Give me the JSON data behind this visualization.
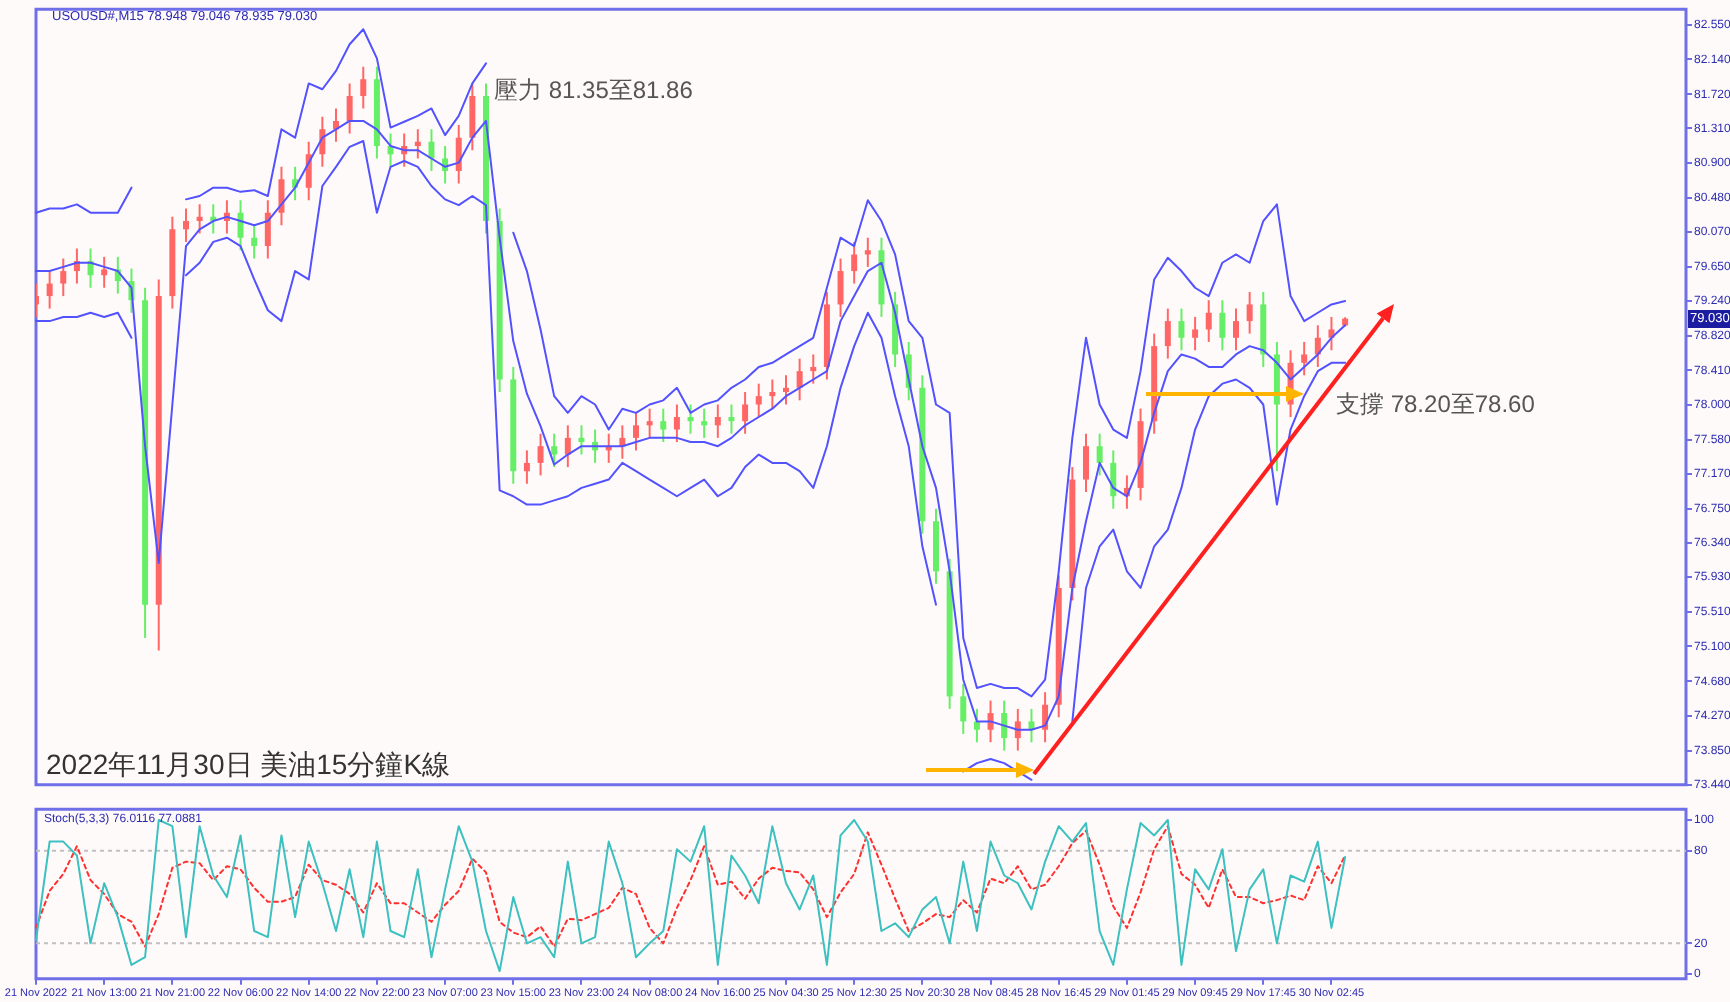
{
  "chart_data": [
    {
      "type": "candlestick",
      "marker": "none",
      "ylim": [
        73.44,
        82.74
      ],
      "yticks": [
        {
          "value": 82.55,
          "label": "82.550"
        },
        {
          "value": 82.14,
          "label": "82.140"
        },
        {
          "value": 81.72,
          "label": "81.720"
        },
        {
          "value": 81.31,
          "label": "81.310"
        },
        {
          "value": 80.9,
          "label": "80.900"
        },
        {
          "value": 80.48,
          "label": "80.480"
        },
        {
          "value": 80.07,
          "label": "80.070"
        },
        {
          "value": 79.65,
          "label": "79.650"
        },
        {
          "value": 79.24,
          "label": "79.240"
        },
        {
          "value": 78.82,
          "label": "78.820"
        },
        {
          "value": 78.41,
          "label": "78.410"
        },
        {
          "value": 78.0,
          "label": "78.000"
        },
        {
          "value": 77.58,
          "label": "77.580"
        },
        {
          "value": 77.17,
          "label": "77.170"
        },
        {
          "value": 76.75,
          "label": "76.750"
        },
        {
          "value": 76.34,
          "label": "76.340"
        },
        {
          "value": 75.93,
          "label": "75.930"
        },
        {
          "value": 75.51,
          "label": "75.510"
        },
        {
          "value": 75.1,
          "label": "75.100"
        },
        {
          "value": 74.68,
          "label": "74.680"
        },
        {
          "value": 74.27,
          "label": "74.270"
        },
        {
          "value": 73.85,
          "label": "73.850"
        },
        {
          "value": 73.44,
          "label": "73.440"
        }
      ],
      "annotations": [
        "USOUSD#,M15  78.948 79.046 78.935 79.030",
        "壓力 81.35至81.86",
        "支撐 78.20至78.60",
        "2022年11月30日 美油15分鐘K線",
        {
          "text": "79.030",
          "y": 79.03
        }
      ],
      "categories": [
        null,
        null,
        null,
        null,
        null,
        null,
        null,
        null,
        null,
        null,
        null,
        null,
        null,
        null,
        null,
        null,
        null,
        null,
        null,
        null,
        null,
        null,
        null,
        null,
        null,
        null,
        null,
        null,
        null,
        null,
        null,
        null,
        null,
        null,
        null,
        null,
        null,
        null,
        null,
        null,
        null,
        null,
        null,
        null,
        null,
        null,
        null,
        null,
        null,
        null,
        null,
        null,
        null,
        null,
        null,
        null,
        null,
        null,
        null,
        null,
        null,
        null,
        null,
        null,
        null,
        null,
        null,
        null,
        null,
        null,
        null,
        null,
        null,
        null,
        null,
        null,
        null,
        null,
        null,
        null,
        null,
        null,
        null,
        null,
        null,
        null,
        null,
        null,
        null,
        null,
        null,
        null,
        null,
        null,
        null,
        null,
        null,
        null,
        null,
        null,
        null,
        null,
        null,
        null,
        null,
        null,
        null,
        null,
        null,
        null,
        null,
        null,
        null,
        null,
        null,
        null,
        null,
        null,
        null,
        null,
        null,
        null
      ],
      "ohlc": [
        [
          79.2,
          79.45,
          79.05,
          79.3
        ],
        [
          79.3,
          79.6,
          79.15,
          79.45
        ],
        [
          79.45,
          79.75,
          79.3,
          79.6
        ],
        [
          79.6,
          79.87,
          79.45,
          79.72
        ],
        [
          79.72,
          79.87,
          79.4,
          79.55
        ],
        [
          79.55,
          79.77,
          79.4,
          79.62
        ],
        [
          79.62,
          79.77,
          79.33,
          79.48
        ],
        [
          79.48,
          79.63,
          79.1,
          79.25
        ],
        [
          79.25,
          79.4,
          75.2,
          75.6
        ],
        [
          75.6,
          79.5,
          75.05,
          79.3
        ],
        [
          79.3,
          80.25,
          79.15,
          80.1
        ],
        [
          80.1,
          80.35,
          79.95,
          80.2
        ],
        [
          80.2,
          80.4,
          80.05,
          80.25
        ],
        [
          80.25,
          80.4,
          80.05,
          80.2
        ],
        [
          80.2,
          80.45,
          80.05,
          80.3
        ],
        [
          80.3,
          80.45,
          79.85,
          80.0
        ],
        [
          80.0,
          80.15,
          79.75,
          79.9
        ],
        [
          79.9,
          80.45,
          79.75,
          80.3
        ],
        [
          80.3,
          80.85,
          80.15,
          80.7
        ],
        [
          80.7,
          80.85,
          80.45,
          80.6
        ],
        [
          80.6,
          81.15,
          80.45,
          81.0
        ],
        [
          81.0,
          81.45,
          80.85,
          81.3
        ],
        [
          81.3,
          81.55,
          81.15,
          81.4
        ],
        [
          81.4,
          81.85,
          81.25,
          81.7
        ],
        [
          81.7,
          82.05,
          81.55,
          81.9
        ],
        [
          81.9,
          82.05,
          80.95,
          81.1
        ],
        [
          81.1,
          81.25,
          80.85,
          81.0
        ],
        [
          81.0,
          81.25,
          80.85,
          81.1
        ],
        [
          81.1,
          81.3,
          80.95,
          81.15
        ],
        [
          81.15,
          81.3,
          80.8,
          80.95
        ],
        [
          80.95,
          81.1,
          80.65,
          80.8
        ],
        [
          80.8,
          81.35,
          80.65,
          81.2
        ],
        [
          81.2,
          81.85,
          81.05,
          81.7
        ],
        [
          81.7,
          81.85,
          80.05,
          80.2
        ],
        [
          80.2,
          80.35,
          78.15,
          78.3
        ],
        [
          78.3,
          78.45,
          77.05,
          77.2
        ],
        [
          77.2,
          77.45,
          77.05,
          77.3
        ],
        [
          77.3,
          77.65,
          77.15,
          77.5
        ],
        [
          77.5,
          77.65,
          77.25,
          77.4
        ],
        [
          77.4,
          77.75,
          77.25,
          77.6
        ],
        [
          77.6,
          77.75,
          77.4,
          77.55
        ],
        [
          77.55,
          77.7,
          77.3,
          77.45
        ],
        [
          77.45,
          77.65,
          77.3,
          77.5
        ],
        [
          77.5,
          77.75,
          77.35,
          77.6
        ],
        [
          77.6,
          77.9,
          77.45,
          77.75
        ],
        [
          77.75,
          77.95,
          77.6,
          77.8
        ],
        [
          77.8,
          77.95,
          77.55,
          77.7
        ],
        [
          77.7,
          78.0,
          77.55,
          77.85
        ],
        [
          77.85,
          78.0,
          77.65,
          77.8
        ],
        [
          77.8,
          77.95,
          77.6,
          77.75
        ],
        [
          77.75,
          78.0,
          77.6,
          77.85
        ],
        [
          77.85,
          78.0,
          77.65,
          77.8
        ],
        [
          77.8,
          78.15,
          77.65,
          78.0
        ],
        [
          78.0,
          78.25,
          77.85,
          78.1
        ],
        [
          78.1,
          78.3,
          77.95,
          78.15
        ],
        [
          78.15,
          78.35,
          78.0,
          78.2
        ],
        [
          78.2,
          78.55,
          78.05,
          78.4
        ],
        [
          78.4,
          78.6,
          78.25,
          78.45
        ],
        [
          78.45,
          79.35,
          78.3,
          79.2
        ],
        [
          79.2,
          79.75,
          79.05,
          79.6
        ],
        [
          79.6,
          79.95,
          79.45,
          79.8
        ],
        [
          79.8,
          80.0,
          79.65,
          79.85
        ],
        [
          79.85,
          80.0,
          79.05,
          79.2
        ],
        [
          79.2,
          79.35,
          78.45,
          78.6
        ],
        [
          78.6,
          78.75,
          78.05,
          78.2
        ],
        [
          78.2,
          78.35,
          76.45,
          76.6
        ],
        [
          76.6,
          76.75,
          75.85,
          76.0
        ],
        [
          76.0,
          76.15,
          74.35,
          74.5
        ],
        [
          74.5,
          74.65,
          74.05,
          74.2
        ],
        [
          74.2,
          74.35,
          73.95,
          74.1
        ],
        [
          74.1,
          74.45,
          73.95,
          74.3
        ],
        [
          74.3,
          74.45,
          73.85,
          74.0
        ],
        [
          74.0,
          74.35,
          73.85,
          74.2
        ],
        [
          74.2,
          74.35,
          73.95,
          74.1
        ],
        [
          74.1,
          74.55,
          73.95,
          74.4
        ],
        [
          74.4,
          75.95,
          74.25,
          75.8
        ],
        [
          75.8,
          77.25,
          75.65,
          77.1
        ],
        [
          77.1,
          77.65,
          76.95,
          77.5
        ],
        [
          77.5,
          77.65,
          77.15,
          77.3
        ],
        [
          77.3,
          77.45,
          76.75,
          76.9
        ],
        [
          76.9,
          77.15,
          76.75,
          77.0
        ],
        [
          77.0,
          77.95,
          76.85,
          77.8
        ],
        [
          77.8,
          78.85,
          77.65,
          78.7
        ],
        [
          78.7,
          79.15,
          78.55,
          79.0
        ],
        [
          79.0,
          79.15,
          78.65,
          78.8
        ],
        [
          78.8,
          79.05,
          78.65,
          78.9
        ],
        [
          78.9,
          79.25,
          78.75,
          79.1
        ],
        [
          79.1,
          79.25,
          78.65,
          78.8
        ],
        [
          78.8,
          79.15,
          78.65,
          79.0
        ],
        [
          79.0,
          79.35,
          78.85,
          79.2
        ],
        [
          79.2,
          79.35,
          78.45,
          78.6
        ],
        [
          78.6,
          78.75,
          77.2,
          78.0
        ],
        [
          78.0,
          78.65,
          77.85,
          78.5
        ],
        [
          78.5,
          78.75,
          78.35,
          78.6
        ],
        [
          78.6,
          78.95,
          78.45,
          78.8
        ],
        [
          78.8,
          79.05,
          78.65,
          78.9
        ],
        [
          78.948,
          79.046,
          78.935,
          79.03
        ],
        null,
        null,
        null,
        null,
        null,
        null,
        null,
        null,
        null,
        null,
        null,
        null,
        null,
        null,
        null,
        null,
        null,
        null,
        null,
        null,
        null,
        null,
        null,
        null,
        null
      ],
      "colors": [
        "#ff6666",
        "#ff6666",
        "#ff6666",
        "#ff6666",
        "#66ee66",
        "#ff6666",
        "#66ee66",
        "#66ee66",
        "#66ee66",
        "#ff6666",
        "#ff6666",
        "#ff6666",
        "#ff6666",
        "#66ee66",
        "#ff6666",
        "#66ee66",
        "#66ee66",
        "#ff6666",
        "#ff6666",
        "#66ee66",
        "#ff6666",
        "#ff6666",
        "#ff6666",
        "#ff6666",
        "#ff6666",
        "#66ee66",
        "#66ee66",
        "#ff6666",
        "#ff6666",
        "#66ee66",
        "#66ee66",
        "#ff6666",
        "#ff6666",
        "#66ee66",
        "#66ee66",
        "#66ee66",
        "#ff6666",
        "#ff6666",
        "#66ee66",
        "#ff6666",
        "#66ee66",
        "#66ee66",
        "#ff6666",
        "#ff6666",
        "#ff6666",
        "#ff6666",
        "#66ee66",
        "#ff6666",
        "#66ee66",
        "#66ee66",
        "#ff6666",
        "#66ee66",
        "#ff6666",
        "#ff6666",
        "#ff6666",
        "#ff6666",
        "#ff6666",
        "#ff6666",
        "#ff6666",
        "#ff6666",
        "#ff6666",
        "#ff6666",
        "#66ee66",
        "#66ee66",
        "#66ee66",
        "#66ee66",
        "#66ee66",
        "#66ee66",
        "#66ee66",
        "#66ee66",
        "#ff6666",
        "#66ee66",
        "#ff6666",
        "#66ee66",
        "#ff6666",
        "#ff6666",
        "#ff6666",
        "#ff6666",
        "#66ee66",
        "#66ee66",
        "#ff6666",
        "#ff6666",
        "#ff6666",
        "#ff6666",
        "#66ee66",
        "#ff6666",
        "#ff6666",
        "#66ee66",
        "#ff6666",
        "#ff6666",
        "#66ee66",
        "#66ee66",
        "#ff6666",
        "#ff6666",
        "#ff6666",
        "#ff6666",
        "#ff6666",
        null,
        null,
        null,
        null,
        null,
        null,
        null,
        null,
        null,
        null,
        null,
        null,
        null,
        null,
        null,
        null,
        null,
        null,
        null,
        null,
        null,
        null,
        null,
        null,
        null
      ],
      "series": [
        {
          "type": "line",
          "color": "#5252ff",
          "values": [
            80.3,
            80.35,
            80.35,
            80.4,
            80.3,
            80.3,
            80.3,
            80.6,
            null,
            null,
            null,
            80.46,
            80.5,
            80.6,
            80.6,
            80.55,
            80.57,
            80.5,
            81.3,
            81.2,
            81.85,
            81.78,
            82.0,
            82.32,
            82.5,
            82.15,
            81.32,
            81.39,
            81.46,
            81.55,
            81.23,
            81.46,
            81.85,
            82.09,
            null,
            80.06,
            79.6,
            78.9,
            78.1,
            77.9,
            78.1,
            78.0,
            77.7,
            77.95,
            77.9,
            78.0,
            78.05,
            78.2,
            77.9,
            78.0,
            78.05,
            78.2,
            78.3,
            78.45,
            78.5,
            78.6,
            78.7,
            78.8,
            79.4,
            80.0,
            79.9,
            80.45,
            80.2,
            79.8,
            79.0,
            78.8,
            78.0,
            77.9,
            75.2,
            74.6,
            74.65,
            74.6,
            74.6,
            74.5,
            74.7,
            76.0,
            77.6,
            78.8,
            78.0,
            77.7,
            77.6,
            78.4,
            79.5,
            79.76,
            79.6,
            79.4,
            79.3,
            79.7,
            79.8,
            79.7,
            80.2,
            80.4,
            79.3,
            79.0,
            79.1,
            79.2,
            79.24,
            null,
            null,
            null,
            null,
            null,
            null,
            null,
            null,
            null,
            null,
            null,
            null,
            null,
            null,
            null,
            null,
            null,
            null,
            null,
            null,
            null,
            null,
            null,
            null,
            null
          ]
        },
        {
          "type": "line",
          "color": "#5252ff",
          "values": [
            79.6,
            79.6,
            79.65,
            79.7,
            79.7,
            79.65,
            79.6,
            79.4,
            77.5,
            76.1,
            78.0,
            79.9,
            80.1,
            80.2,
            80.25,
            80.2,
            80.15,
            80.2,
            80.4,
            80.6,
            80.9,
            81.2,
            81.3,
            81.4,
            81.4,
            81.3,
            81.1,
            81.05,
            81.05,
            80.95,
            80.85,
            80.9,
            81.2,
            81.4,
            80.0,
            78.76,
            78.13,
            77.74,
            77.28,
            77.4,
            77.5,
            77.5,
            77.5,
            77.5,
            77.55,
            77.6,
            77.6,
            77.6,
            77.55,
            77.55,
            77.5,
            77.6,
            77.75,
            77.85,
            77.95,
            78.1,
            78.2,
            78.3,
            78.4,
            79.0,
            79.3,
            79.6,
            79.7,
            79.1,
            78.3,
            77.5,
            77.0,
            76.0,
            74.7,
            74.2,
            74.2,
            74.15,
            74.1,
            74.1,
            74.15,
            74.5,
            75.8,
            76.6,
            77.3,
            77.0,
            76.9,
            77.3,
            77.9,
            78.4,
            78.6,
            78.55,
            78.45,
            78.45,
            78.6,
            78.7,
            78.65,
            78.5,
            78.3,
            78.45,
            78.6,
            78.8,
            78.95,
            null,
            null,
            null,
            null,
            null,
            null,
            null,
            null,
            null,
            null,
            null,
            null,
            null,
            null,
            null,
            null,
            null,
            null,
            null,
            null,
            null,
            null,
            null,
            null,
            null
          ]
        },
        {
          "type": "line",
          "color": "#5252ff",
          "values": [
            79.0,
            79.0,
            79.05,
            79.05,
            79.1,
            79.05,
            79.1,
            78.8,
            null,
            null,
            null,
            79.55,
            79.7,
            79.95,
            80.0,
            79.9,
            79.5,
            79.13,
            79.0,
            79.6,
            79.5,
            80.62,
            80.85,
            81.09,
            81.16,
            80.3,
            80.85,
            80.92,
            80.85,
            80.62,
            80.46,
            80.39,
            80.5,
            80.39,
            76.97,
            76.9,
            76.8,
            76.8,
            76.85,
            76.9,
            77.0,
            77.05,
            77.1,
            77.3,
            77.2,
            77.1,
            77.0,
            76.9,
            77.0,
            77.1,
            76.9,
            77.0,
            77.25,
            77.4,
            77.3,
            77.3,
            77.2,
            77.0,
            77.5,
            78.2,
            78.7,
            79.1,
            78.8,
            78.1,
            77.5,
            76.3,
            75.6,
            null,
            73.6,
            73.7,
            73.75,
            73.7,
            73.6,
            73.5,
            null,
            null,
            74.2,
            75.8,
            76.3,
            76.5,
            76.0,
            75.8,
            76.3,
            76.5,
            77.0,
            77.7,
            78.1,
            78.25,
            78.3,
            78.2,
            78.0,
            76.8,
            77.7,
            78.1,
            78.4,
            78.5,
            78.5,
            null,
            null,
            null,
            null,
            null,
            null,
            null,
            null,
            null,
            null,
            null,
            null,
            null,
            null,
            null,
            null,
            null,
            null,
            null,
            null,
            null,
            null,
            null,
            null,
            null
          ]
        }
      ]
    },
    {
      "type": "line",
      "marker": "none",
      "ylim": [
        -3,
        107
      ],
      "yticks": [
        0,
        20,
        80,
        100
      ],
      "annotations": [
        "Stoch(5,3,3) 76.0116 77.0881"
      ],
      "ref_lines": [
        {
          "axis": "y",
          "value": 80,
          "color": "#c0c0c0",
          "line_style": "dotted"
        },
        {
          "axis": "y",
          "value": 20,
          "color": "#c0c0c0",
          "line_style": "dotted"
        }
      ],
      "categories": [
        "21 Nov 2022",
        null,
        null,
        null,
        null,
        "21 Nov 13:00",
        null,
        null,
        null,
        null,
        "21 Nov 21:00",
        null,
        null,
        null,
        null,
        "22 Nov 06:00",
        null,
        null,
        null,
        null,
        "22 Nov 14:00",
        null,
        null,
        null,
        null,
        "22 Nov 22:00",
        null,
        null,
        null,
        null,
        "23 Nov 07:00",
        null,
        null,
        null,
        null,
        "23 Nov 15:00",
        null,
        null,
        null,
        null,
        "23 Nov 23:00",
        null,
        null,
        null,
        null,
        "24 Nov 08:00",
        null,
        null,
        null,
        null,
        "24 Nov 16:00",
        null,
        null,
        null,
        null,
        "25 Nov 04:30",
        null,
        null,
        null,
        null,
        "25 Nov 12:30",
        null,
        null,
        null,
        null,
        "25 Nov 20:30",
        null,
        null,
        null,
        null,
        "28 Nov 08:45",
        null,
        null,
        null,
        null,
        "28 Nov 16:45",
        null,
        null,
        null,
        null,
        "29 Nov 01:45",
        null,
        null,
        null,
        null,
        "29 Nov 09:45",
        null,
        null,
        null,
        null,
        "29 Nov 17:45",
        null,
        null,
        null,
        null,
        "30 Nov 02:45",
        null,
        null,
        null,
        null,
        null,
        null,
        null,
        null,
        null,
        null,
        null,
        null,
        null,
        null,
        null,
        null,
        null,
        null,
        null,
        null,
        null,
        null,
        null,
        null,
        null,
        null
      ],
      "series": [
        {
          "color": "#3cc0c0",
          "line_style": "solid",
          "values": [
            22,
            86,
            86,
            77,
            20,
            59,
            37,
            6,
            11,
            100,
            96,
            24,
            96,
            64,
            50,
            90,
            28,
            24,
            90,
            37,
            86,
            59,
            28,
            68,
            24,
            86,
            28,
            24,
            68,
            11,
            55,
            96,
            73,
            28,
            2,
            50,
            20,
            24,
            11,
            73,
            20,
            24,
            86,
            59,
            11,
            20,
            28,
            81,
            73,
            96,
            6,
            77,
            64,
            46,
            96,
            59,
            42,
            64,
            6,
            90,
            100,
            86,
            28,
            33,
            24,
            42,
            50,
            20,
            73,
            28,
            86,
            64,
            59,
            42,
            73,
            96,
            86,
            98,
            28,
            6,
            55,
            98,
            90,
            100,
            6,
            68,
            55,
            81,
            15,
            55,
            68,
            20,
            64,
            60,
            86,
            30,
            76,
            null,
            null,
            null,
            null,
            null,
            null,
            null,
            null,
            null,
            null,
            null,
            null,
            null,
            null,
            null,
            null,
            null,
            null,
            null,
            null,
            null,
            null,
            null,
            null,
            null
          ]
        },
        {
          "color": "#ff3030",
          "line_style": "dotted",
          "values": [
            30,
            54,
            65,
            83,
            61,
            52,
            39,
            34,
            18,
            39,
            69,
            73,
            72,
            61,
            70,
            68,
            56,
            47,
            47,
            50,
            71,
            61,
            58,
            52,
            40,
            59,
            46,
            46,
            40,
            34,
            45,
            54,
            75,
            66,
            34,
            27,
            24,
            31,
            18,
            36,
            35,
            39,
            43,
            56,
            52,
            30,
            20,
            43,
            61,
            83,
            58,
            60,
            49,
            62,
            69,
            67,
            66,
            55,
            37,
            53,
            65,
            92,
            71,
            49,
            28,
            33,
            39,
            37,
            48,
            40,
            62,
            59,
            70,
            55,
            58,
            70,
            85,
            93,
            71,
            44,
            30,
            53,
            81,
            96,
            65,
            58,
            43,
            68,
            50,
            50,
            46,
            48,
            51,
            48,
            70,
            59,
            77,
            null,
            null,
            null,
            null,
            null,
            null,
            null,
            null,
            null,
            null,
            null,
            null,
            null,
            null,
            null,
            null,
            null,
            null,
            null,
            null,
            null,
            null,
            null,
            null,
            null
          ]
        }
      ]
    }
  ]
}
